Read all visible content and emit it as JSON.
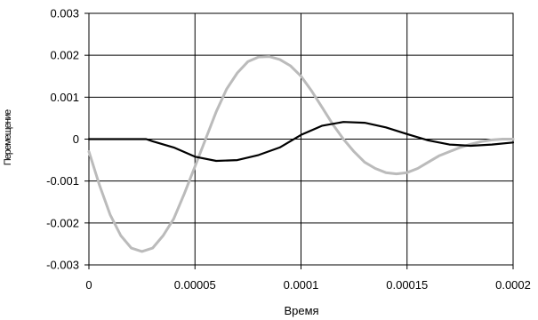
{
  "chart_data": {
    "type": "line",
    "xlabel": "Время",
    "ylabel": "Перемещение",
    "xlim": [
      0,
      0.0002
    ],
    "ylim": [
      -0.003,
      0.003
    ],
    "x_ticks": [
      "0",
      "0.00005",
      "0.0001",
      "0.00015",
      "0.0002"
    ],
    "y_ticks": [
      "0.003",
      "0.002",
      "0.001",
      "0",
      "-0.001",
      "-0.002",
      "-0.003"
    ],
    "grid": true,
    "legend": "none",
    "series": [
      {
        "color": "#000000",
        "x": [
          0,
          2.7e-05,
          3e-05,
          4e-05,
          5e-05,
          6e-05,
          7e-05,
          8e-05,
          9e-05,
          0.0001,
          0.00011,
          0.00012,
          0.00013,
          0.00014,
          0.00015,
          0.00016,
          0.00017,
          0.00018,
          0.00019,
          0.0002
        ],
        "y": [
          0,
          0,
          -5e-05,
          -0.0002,
          -0.00042,
          -0.00052,
          -0.0005,
          -0.00038,
          -0.0002,
          0.0001,
          0.00032,
          0.00041,
          0.00039,
          0.00028,
          0.00012,
          -3e-05,
          -0.00013,
          -0.00016,
          -0.00013,
          -8e-05
        ]
      },
      {
        "color": "#bbbbbb",
        "x": [
          0,
          5e-06,
          1e-05,
          1.5e-05,
          2e-05,
          2.5e-05,
          3e-05,
          3.5e-05,
          4e-05,
          4.5e-05,
          5e-05,
          5.5e-05,
          6e-05,
          6.5e-05,
          7e-05,
          7.5e-05,
          8e-05,
          8.5e-05,
          9e-05,
          9.5e-05,
          0.0001,
          0.000105,
          0.00011,
          0.000115,
          0.00012,
          0.000125,
          0.00013,
          0.000135,
          0.00014,
          0.000145,
          0.00015,
          0.000155,
          0.00016,
          0.000165,
          0.00017,
          0.000175,
          0.00018,
          0.000185,
          0.00019,
          0.000195,
          0.0002
        ],
        "y": [
          -0.0003,
          -0.0011,
          -0.0018,
          -0.0023,
          -0.0026,
          -0.00268,
          -0.0026,
          -0.0023,
          -0.0019,
          -0.0013,
          -0.00065,
          0.0,
          0.00065,
          0.0012,
          0.00158,
          0.00185,
          0.00196,
          0.00197,
          0.0019,
          0.00175,
          0.0015,
          0.00115,
          0.00075,
          0.00035,
          0.0,
          -0.0003,
          -0.00055,
          -0.0007,
          -0.0008,
          -0.00083,
          -0.0008,
          -0.0007,
          -0.00055,
          -0.0004,
          -0.0003,
          -0.0002,
          -0.00012,
          -6e-05,
          -2e-05,
          0.0,
          0.0
        ]
      }
    ]
  }
}
